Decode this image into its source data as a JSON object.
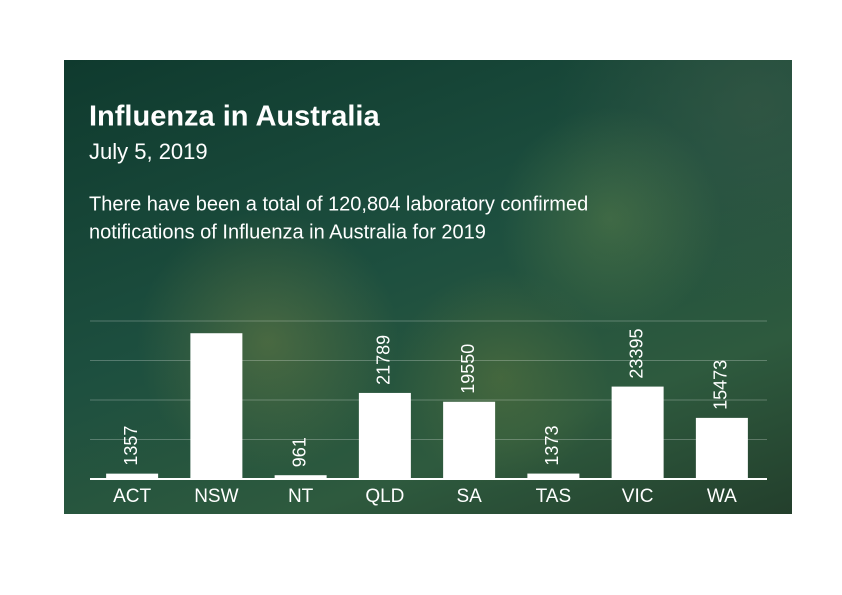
{
  "chart_data": {
    "type": "bar",
    "title": "Influenza in Australia",
    "subtitle": "July 5, 2019",
    "description": [
      "There have been a total of 120,804 laboratory confirmed",
      "notifications of Influenza in Australia for 2019"
    ],
    "categories": [
      "ACT",
      "NSW",
      "NT",
      "QLD",
      "SA",
      "TAS",
      "VIC",
      "WA"
    ],
    "values": [
      1357,
      36906,
      961,
      21789,
      19550,
      1373,
      23395,
      15473
    ],
    "value_labels": [
      "1357",
      null,
      "961",
      "21789",
      "19550",
      "1373",
      "23395",
      "15473"
    ],
    "color": "#ffffff",
    "ylim": [
      0,
      40000
    ],
    "yticks": [
      0,
      10000,
      20000,
      30000,
      40000
    ],
    "grid": true
  }
}
